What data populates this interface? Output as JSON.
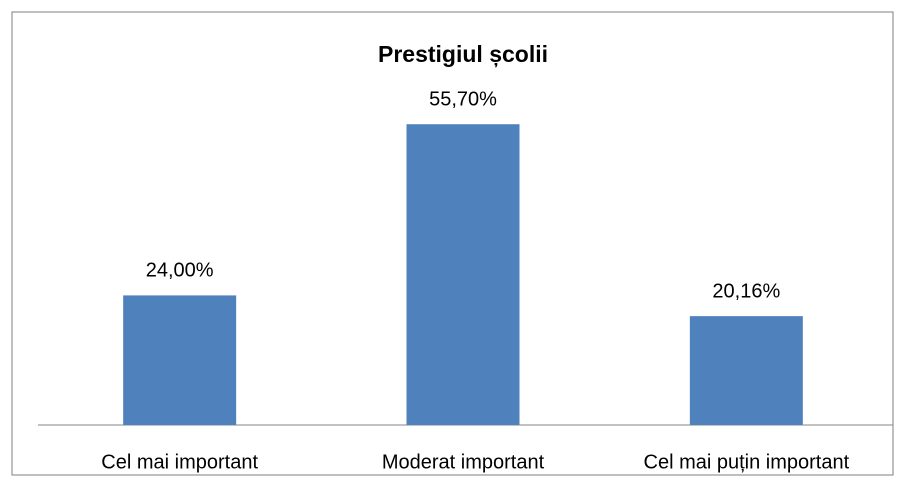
{
  "chart_data": {
    "type": "bar",
    "title": "Prestigiul școlii",
    "categories": [
      "Cel mai important",
      "Moderat important",
      "Cel mai puțin important"
    ],
    "values": [
      24.0,
      55.7,
      20.16
    ],
    "value_labels": [
      "24,00%",
      "55,70%",
      "20,16%"
    ],
    "color": "#4f81bd"
  }
}
